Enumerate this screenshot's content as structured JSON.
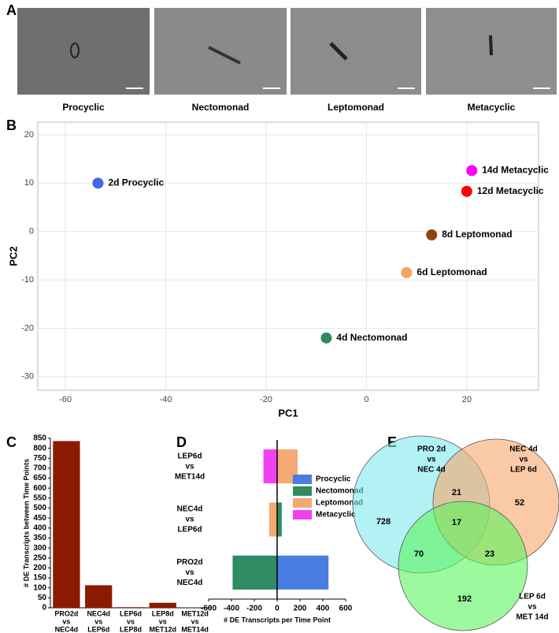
{
  "images": {
    "panel": "A",
    "labels": [
      "Procyclic",
      "Nectomonad",
      "Leptomonad",
      "Metacyclic"
    ]
  },
  "chart_data": [
    {
      "type": "scatter",
      "panel": "B",
      "x_label": "PC1",
      "y_label": "PC2",
      "xlim": [
        -65.5,
        34.3
      ],
      "ylim": [
        -32.8,
        22.6
      ],
      "xticks": [
        -60,
        -40,
        -20,
        0,
        20
      ],
      "yticks": [
        -30,
        -20,
        -10,
        0,
        10,
        20
      ],
      "grid": true,
      "series": [
        {
          "name": "2d Procyclic",
          "color": "#4169e1",
          "x": [
            -53.5
          ],
          "values": [
            10
          ]
        },
        {
          "name": "14d Metacyclic",
          "color": "#ff00ff",
          "x": [
            21
          ],
          "values": [
            12.6
          ]
        },
        {
          "name": "12d Metacyclic",
          "color": "#ff0000",
          "x": [
            20
          ],
          "values": [
            8.3
          ]
        },
        {
          "name": "8d Leptomonad",
          "color": "#8b4513",
          "x": [
            13
          ],
          "values": [
            -0.7
          ]
        },
        {
          "name": "6d Leptomonad",
          "color": "#f4a460",
          "x": [
            8
          ],
          "values": [
            -8.5
          ]
        },
        {
          "name": "4d Nectomonad",
          "color": "#2e8b57",
          "x": [
            -8
          ],
          "values": [
            -22
          ]
        }
      ]
    },
    {
      "type": "bar",
      "panel": "C",
      "y_label": "# DE Transcripts between Time Points",
      "categories": [
        [
          "PRO2d",
          "vs",
          "NEC4d"
        ],
        [
          "NEC4d",
          "vs",
          "LEP6d"
        ],
        [
          "LEP6d",
          "vs",
          "LEP8d"
        ],
        [
          "LEP8d",
          "vs",
          "MET12d"
        ],
        [
          "MET12d",
          "vs",
          "MET14d"
        ]
      ],
      "values": [
        836,
        113,
        3,
        25,
        1
      ],
      "color": "#8b1a00",
      "ylim": [
        0,
        850
      ],
      "yticks": [
        0,
        50,
        100,
        150,
        200,
        250,
        300,
        350,
        400,
        450,
        500,
        550,
        600,
        650,
        700,
        750,
        800,
        850
      ]
    },
    {
      "type": "hbar",
      "panel": "D",
      "x_label": "# DE Transcripts per Time Point",
      "categories": [
        [
          "PRO2d",
          "vs",
          "NEC4d"
        ],
        [
          "NEC4d",
          "vs",
          "LEP6d"
        ],
        [
          "LEP6d",
          "vs",
          "MET14d"
        ]
      ],
      "series": [
        {
          "name": "Procyclic",
          "color": "#4a7de0",
          "values": [
            450,
            null,
            null
          ]
        },
        {
          "name": "Nectomonad",
          "color": "#2e8b63",
          "values": [
            -390,
            40,
            null
          ]
        },
        {
          "name": "Leptomonad",
          "color": "#f4a872",
          "values": [
            null,
            -70,
            180
          ]
        },
        {
          "name": "Metacyclic",
          "color": "#f040f0",
          "values": [
            null,
            null,
            -120
          ]
        }
      ],
      "xlim": [
        -600,
        600
      ],
      "xticks": [
        -600,
        -400,
        -200,
        0,
        200,
        400,
        600
      ]
    },
    {
      "type": "venn",
      "panel": "E",
      "sets": [
        {
          "label": [
            "PRO 2d",
            "vs",
            "NEC 4d"
          ],
          "color": "#7fe8ec"
        },
        {
          "label": [
            "NEC 4d",
            "vs",
            "LEP 6d"
          ],
          "color": "#f6a66a"
        },
        {
          "label": [
            "LEP 6d",
            "vs",
            "MET 14d"
          ],
          "color": "#5cf55c"
        }
      ],
      "counts": [
        728,
        21,
        52,
        17,
        70,
        23,
        192
      ]
    }
  ]
}
